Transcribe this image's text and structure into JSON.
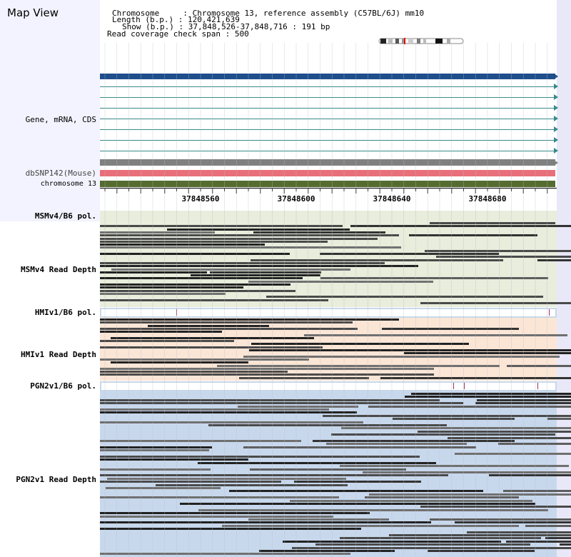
{
  "title": "Map View",
  "info": {
    "chromosome_label": "Chromosome",
    "chromosome_value": "Chromosome 13, reference assembly (C57BL/6J) mm10",
    "length_label": "Length (b.p.)",
    "length_value": "120,421,639",
    "show_label": "Show (b.p.)",
    "show_value": "37,848,526-37,848,716 : 191 bp",
    "read_coverage_label": "Read coverage check span",
    "read_coverage_value": "500"
  },
  "tracks": {
    "gene": "Gene, mRNA, CDS",
    "dbsnp": "dbSNP142(Mouse)",
    "chromosome": "chromosome 13",
    "msm_pol": "MSMv4/B6 pol.",
    "msm_depth": "MSMv4 Read Depth",
    "hmi_pol": "HMIv1/B6 pol.",
    "hmi_depth": "HMIv1 Read Depth",
    "pgn_pol": "PGN2v1/B6 pol.",
    "pgn_depth": "PGN2v1 Read Depth"
  },
  "ruler": {
    "start": 37848526,
    "end": 37848716,
    "labels": [
      "37848560",
      "37848600",
      "37848640",
      "37848680"
    ]
  },
  "colors": {
    "gene_main": "#1f4e8c",
    "gene_line": "#3a8a8a",
    "dbsnp": "#e86f7a",
    "chromosome": "#556b2f",
    "msm_bg": "#e8eddc",
    "hmi_bg": "#fbe6d6",
    "pgn_bg": "#c8d8ec",
    "snp_mark": "#993366"
  }
}
